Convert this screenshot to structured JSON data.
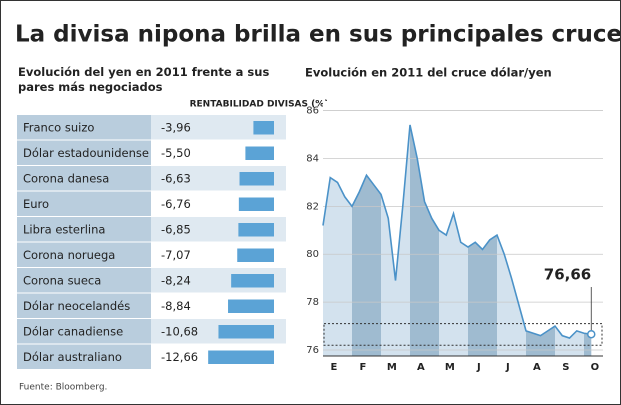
{
  "header": {
    "title": "La divisa nipona brilla en sus principales cruces"
  },
  "chart_data": [
    {
      "type": "hbar",
      "title": "Evolución del yen en 2011 frente a sus pares más negociados",
      "subtitle": "RENTABILIDAD DIVISAS (%)",
      "categories": [
        "Franco suizo",
        "Dólar estadounidense",
        "Corona danesa",
        "Euro",
        "Libra esterlina",
        "Corona noruega",
        "Corona sueca",
        "Dólar neocelandés",
        "Dólar canadiense",
        "Dólar australiano"
      ],
      "values": [
        -3.96,
        -5.5,
        -6.63,
        -6.76,
        -6.85,
        -7.07,
        -8.24,
        -8.84,
        -10.68,
        -12.66
      ],
      "value_labels": [
        "-3,96",
        "-5,50",
        "-6,63",
        "-6,76",
        "-6,85",
        "-7,07",
        "-8,24",
        "-8,84",
        "-10,68",
        "-12,66"
      ],
      "color": "#5ba3d6"
    },
    {
      "type": "line",
      "title": "Evolución en 2011 del cruce dólar/yen",
      "categories": [
        "E",
        null,
        null,
        null,
        "F",
        null,
        null,
        null,
        "M",
        null,
        null,
        null,
        "A",
        null,
        null,
        null,
        "M",
        null,
        null,
        null,
        "J",
        null,
        null,
        null,
        "J",
        null,
        null,
        null,
        "A",
        null,
        null,
        null,
        "S",
        null,
        null,
        null,
        "O",
        null
      ],
      "values": [
        81.2,
        83.2,
        83.0,
        82.4,
        82.0,
        82.6,
        83.3,
        82.9,
        82.5,
        81.5,
        78.9,
        82.0,
        85.4,
        84.0,
        82.2,
        81.5,
        81.0,
        80.8,
        81.7,
        80.5,
        80.3,
        80.5,
        80.2,
        80.6,
        80.8,
        80.0,
        79.0,
        77.9,
        76.8,
        76.7,
        76.6,
        76.8,
        77.0,
        76.6,
        76.5,
        76.8,
        76.7,
        76.66
      ],
      "color": "#4b92c8",
      "ylim": [
        75.75,
        86.4
      ],
      "yticks": [
        76,
        78,
        80,
        82,
        84,
        86
      ],
      "grid": true,
      "annotation": {
        "text": "76,66",
        "value": 76.66
      }
    }
  ],
  "footer": {
    "source": "Fuente: Bloomberg."
  }
}
